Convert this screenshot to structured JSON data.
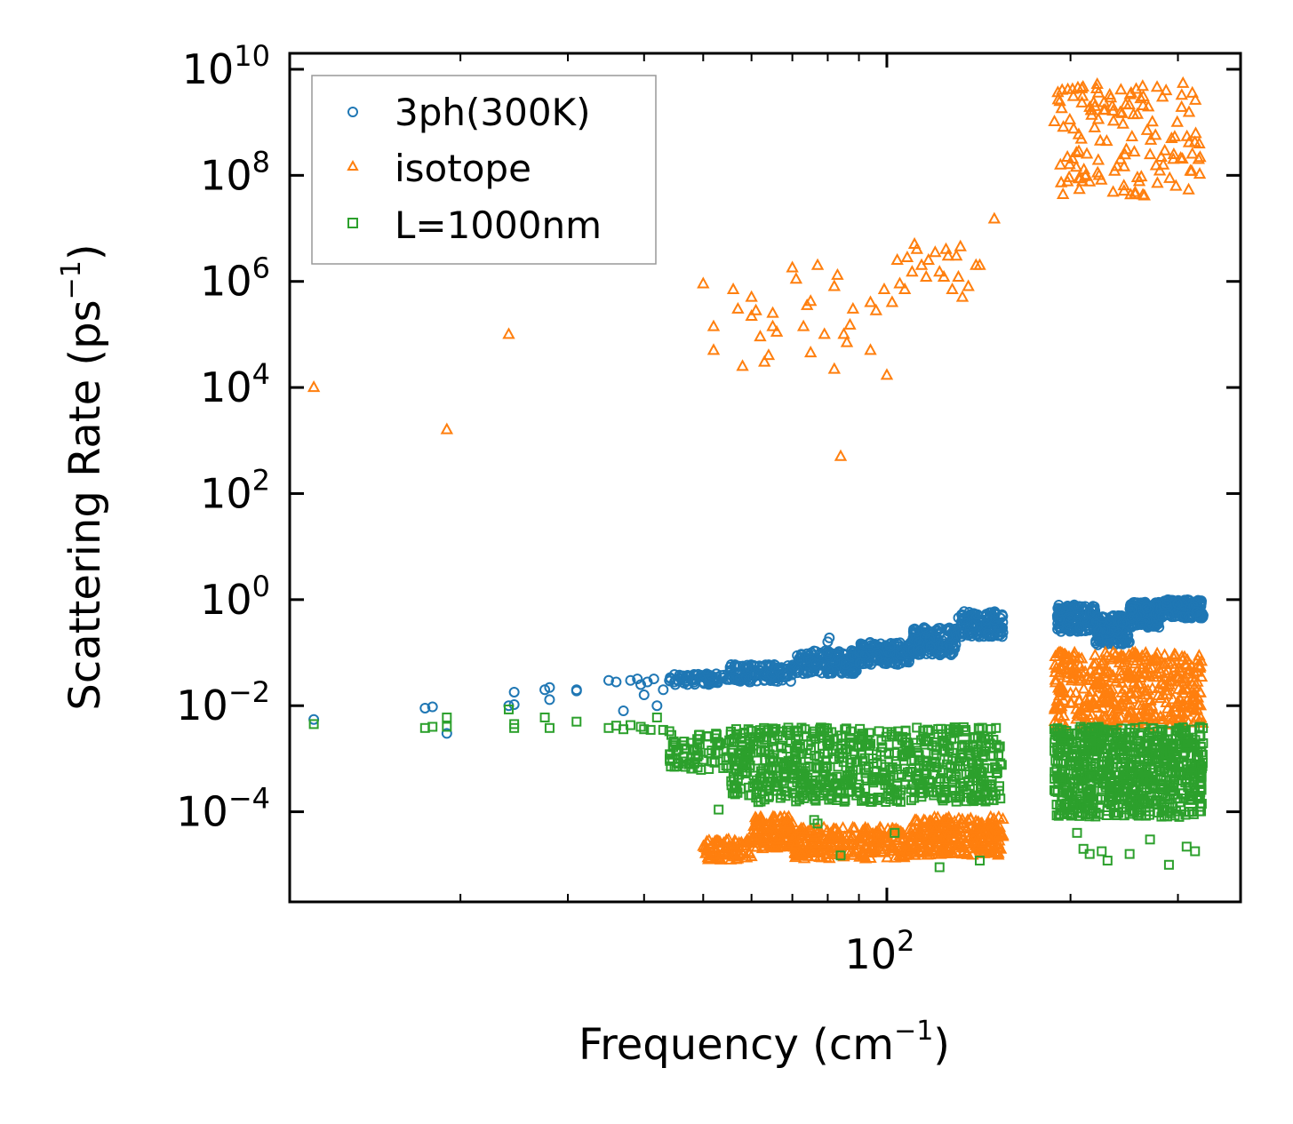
{
  "chart_data": {
    "type": "scatter",
    "title": "",
    "xlabel": "Frequency (cm",
    "xlabel_sup": "−1",
    "xlabel_end": ")",
    "ylabel": "Scattering Rate (ps",
    "ylabel_sup": "−1",
    "ylabel_end": ")",
    "xscale": "log",
    "yscale": "log",
    "xlim": [
      10.5,
      380
    ],
    "ylim": [
      2e-06,
      20000000000
    ],
    "x_ticks": [
      {
        "value": 100,
        "base": "10",
        "exp": "2"
      }
    ],
    "y_ticks": [
      {
        "value": 0.0001,
        "base": "10",
        "exp": "−4"
      },
      {
        "value": 0.01,
        "base": "10",
        "exp": "−2"
      },
      {
        "value": 1,
        "base": "10",
        "exp": "0"
      },
      {
        "value": 100,
        "base": "10",
        "exp": "2"
      },
      {
        "value": 10000,
        "base": "10",
        "exp": "4"
      },
      {
        "value": 1000000,
        "base": "10",
        "exp": "6"
      },
      {
        "value": 100000000,
        "base": "10",
        "exp": "8"
      },
      {
        "value": 10000000000,
        "base": "10",
        "exp": "10"
      }
    ],
    "legend_position": "upper-left",
    "legend": [
      {
        "label": "3ph(300K)",
        "marker": "circle",
        "color": "#1f77b4"
      },
      {
        "label": "isotope",
        "marker": "triangle",
        "color": "#ff7f0e"
      },
      {
        "label": "L=1000nm",
        "marker": "square",
        "color": "#2ca02c"
      }
    ],
    "series": [
      {
        "name": "3ph(300K)",
        "color": "#1f77b4",
        "marker": "circle",
        "points": [
          [
            11.5,
            0.0055
          ],
          [
            17.5,
            0.009
          ],
          [
            18,
            0.0095
          ],
          [
            19,
            0.003
          ],
          [
            24,
            0.01
          ],
          [
            24.5,
            0.018
          ],
          [
            24.5,
            0.0105
          ],
          [
            27.5,
            0.02
          ],
          [
            28,
            0.022
          ],
          [
            28,
            0.013
          ],
          [
            31,
            0.019
          ],
          [
            31,
            0.02
          ],
          [
            35,
            0.03
          ],
          [
            36,
            0.028
          ],
          [
            37,
            0.008
          ],
          [
            38,
            0.03
          ],
          [
            39,
            0.032
          ],
          [
            39.5,
            0.025
          ],
          [
            40,
            0.016
          ],
          [
            40.5,
            0.028
          ],
          [
            41.5,
            0.032
          ],
          [
            42,
            0.01
          ],
          [
            43,
            0.02
          ],
          [
            44,
            0.03
          ],
          [
            45,
            0.025
          ],
          [
            46,
            0.036
          ],
          [
            80,
            0.16
          ],
          [
            80.5,
            0.19
          ]
        ],
        "bands": [
          {
            "x0": 44,
            "x1": 55,
            "y0": 0.025,
            "y1": 0.04,
            "n": 70
          },
          {
            "x0": 55,
            "x1": 70,
            "y0": 0.028,
            "y1": 0.06,
            "n": 120
          },
          {
            "x0": 70,
            "x1": 90,
            "y0": 0.04,
            "y1": 0.11,
            "n": 160
          },
          {
            "x0": 90,
            "x1": 110,
            "y0": 0.06,
            "y1": 0.16,
            "n": 160
          },
          {
            "x0": 110,
            "x1": 130,
            "y0": 0.09,
            "y1": 0.3,
            "n": 160
          },
          {
            "x0": 130,
            "x1": 155,
            "y0": 0.2,
            "y1": 0.6,
            "n": 140
          },
          {
            "x0": 190,
            "x1": 220,
            "y0": 0.25,
            "y1": 0.8,
            "n": 160
          },
          {
            "x0": 220,
            "x1": 250,
            "y0": 0.14,
            "y1": 0.5,
            "n": 160
          },
          {
            "x0": 250,
            "x1": 280,
            "y0": 0.3,
            "y1": 0.9,
            "n": 160
          },
          {
            "x0": 280,
            "x1": 330,
            "y0": 0.45,
            "y1": 1.0,
            "n": 180
          }
        ]
      },
      {
        "name": "isotope",
        "color": "#ff7f0e",
        "marker": "triangle",
        "points": [
          [
            11.5,
            10000
          ],
          [
            19,
            1600
          ],
          [
            24,
            100000
          ],
          [
            50,
            900000
          ],
          [
            52,
            140000
          ],
          [
            52,
            50000
          ],
          [
            56,
            700000
          ],
          [
            57,
            300000
          ],
          [
            58,
            25000
          ],
          [
            60,
            500000
          ],
          [
            60,
            220000
          ],
          [
            61,
            280000
          ],
          [
            62,
            90000
          ],
          [
            63,
            30000
          ],
          [
            64,
            40000
          ],
          [
            65,
            250000
          ],
          [
            65,
            140000
          ],
          [
            66,
            110000
          ],
          [
            70,
            1800000
          ],
          [
            71,
            1100000
          ],
          [
            73,
            140000
          ],
          [
            74,
            350000
          ],
          [
            75,
            420000
          ],
          [
            75,
            45000
          ],
          [
            77,
            2000000
          ],
          [
            79,
            100000
          ],
          [
            82,
            800000
          ],
          [
            82,
            22000
          ],
          [
            83,
            1300000
          ],
          [
            84,
            500
          ],
          [
            85,
            100000
          ],
          [
            86,
            70000
          ],
          [
            87,
            150000
          ],
          [
            88,
            300000
          ],
          [
            94,
            50000
          ],
          [
            94,
            400000
          ],
          [
            96,
            280000
          ],
          [
            99,
            700000
          ],
          [
            100,
            17000
          ],
          [
            102,
            400000
          ],
          [
            104,
            2500000
          ],
          [
            105,
            900000
          ],
          [
            107,
            700000
          ],
          [
            108,
            2800000
          ],
          [
            110,
            1500000
          ],
          [
            111,
            5000000
          ],
          [
            112,
            4000000
          ],
          [
            114,
            2000000
          ],
          [
            116,
            1200000
          ],
          [
            117,
            2500000
          ],
          [
            120,
            3500000
          ],
          [
            122,
            1500000
          ],
          [
            124,
            1200000
          ],
          [
            125,
            4000000
          ],
          [
            126,
            3000000
          ],
          [
            128,
            700000
          ],
          [
            130,
            3000000
          ],
          [
            131,
            1200000
          ],
          [
            132,
            4500000
          ],
          [
            133,
            500000
          ],
          [
            136,
            800000
          ],
          [
            140,
            2000000
          ],
          [
            142,
            2000000
          ],
          [
            150,
            15000000
          ]
        ],
        "bands": [
          {
            "x0": 188,
            "x1": 330,
            "y0": 40000000,
            "y1": 5500000000,
            "n": 140
          },
          {
            "x0": 50,
            "x1": 60,
            "y0": 1.2e-05,
            "y1": 3e-05,
            "n": 80
          },
          {
            "x0": 60,
            "x1": 70,
            "y0": 2e-05,
            "y1": 8e-05,
            "n": 120
          },
          {
            "x0": 70,
            "x1": 110,
            "y0": 1.3e-05,
            "y1": 5e-05,
            "n": 260
          },
          {
            "x0": 110,
            "x1": 155,
            "y0": 1.5e-05,
            "y1": 8e-05,
            "n": 260
          },
          {
            "x0": 188,
            "x1": 330,
            "y0": 0.004,
            "y1": 0.1,
            "n": 420
          }
        ]
      },
      {
        "name": "L=1000nm",
        "color": "#2ca02c",
        "marker": "square",
        "points": [
          [
            11.5,
            0.0045
          ],
          [
            17.5,
            0.0038
          ],
          [
            18,
            0.004
          ],
          [
            19,
            0.006
          ],
          [
            19,
            0.004
          ],
          [
            24,
            0.0085
          ],
          [
            24.5,
            0.0045
          ],
          [
            24.5,
            0.0038
          ],
          [
            27.5,
            0.006
          ],
          [
            28,
            0.0038
          ],
          [
            31,
            0.005
          ],
          [
            35,
            0.0038
          ],
          [
            36,
            0.0042
          ],
          [
            37,
            0.0036
          ],
          [
            38,
            0.0043
          ],
          [
            39.5,
            0.004
          ],
          [
            40,
            0.0036
          ],
          [
            41,
            0.0035
          ],
          [
            42,
            0.006
          ],
          [
            43,
            0.0035
          ],
          [
            44,
            0.0033
          ],
          [
            53,
            0.00011
          ],
          [
            76,
            7e-05
          ],
          [
            77,
            6e-05
          ],
          [
            84,
            1.5e-05
          ],
          [
            103,
            4e-05
          ],
          [
            122,
            9e-06
          ],
          [
            142,
            1.2e-05
          ],
          [
            205,
            4e-05
          ],
          [
            210,
            2e-05
          ],
          [
            215,
            1.6e-05
          ],
          [
            225,
            1.8e-05
          ],
          [
            230,
            1.2e-05
          ],
          [
            250,
            1.6e-05
          ],
          [
            270,
            3e-05
          ],
          [
            290,
            1e-05
          ],
          [
            310,
            2.2e-05
          ],
          [
            320,
            1.8e-05
          ]
        ],
        "bands": [
          {
            "x0": 44,
            "x1": 60,
            "y0": 0.0006,
            "y1": 0.003,
            "n": 90
          },
          {
            "x0": 55,
            "x1": 155,
            "y0": 0.00015,
            "y1": 0.004,
            "n": 700
          },
          {
            "x0": 188,
            "x1": 330,
            "y0": 8e-05,
            "y1": 0.004,
            "n": 720
          }
        ]
      }
    ]
  }
}
